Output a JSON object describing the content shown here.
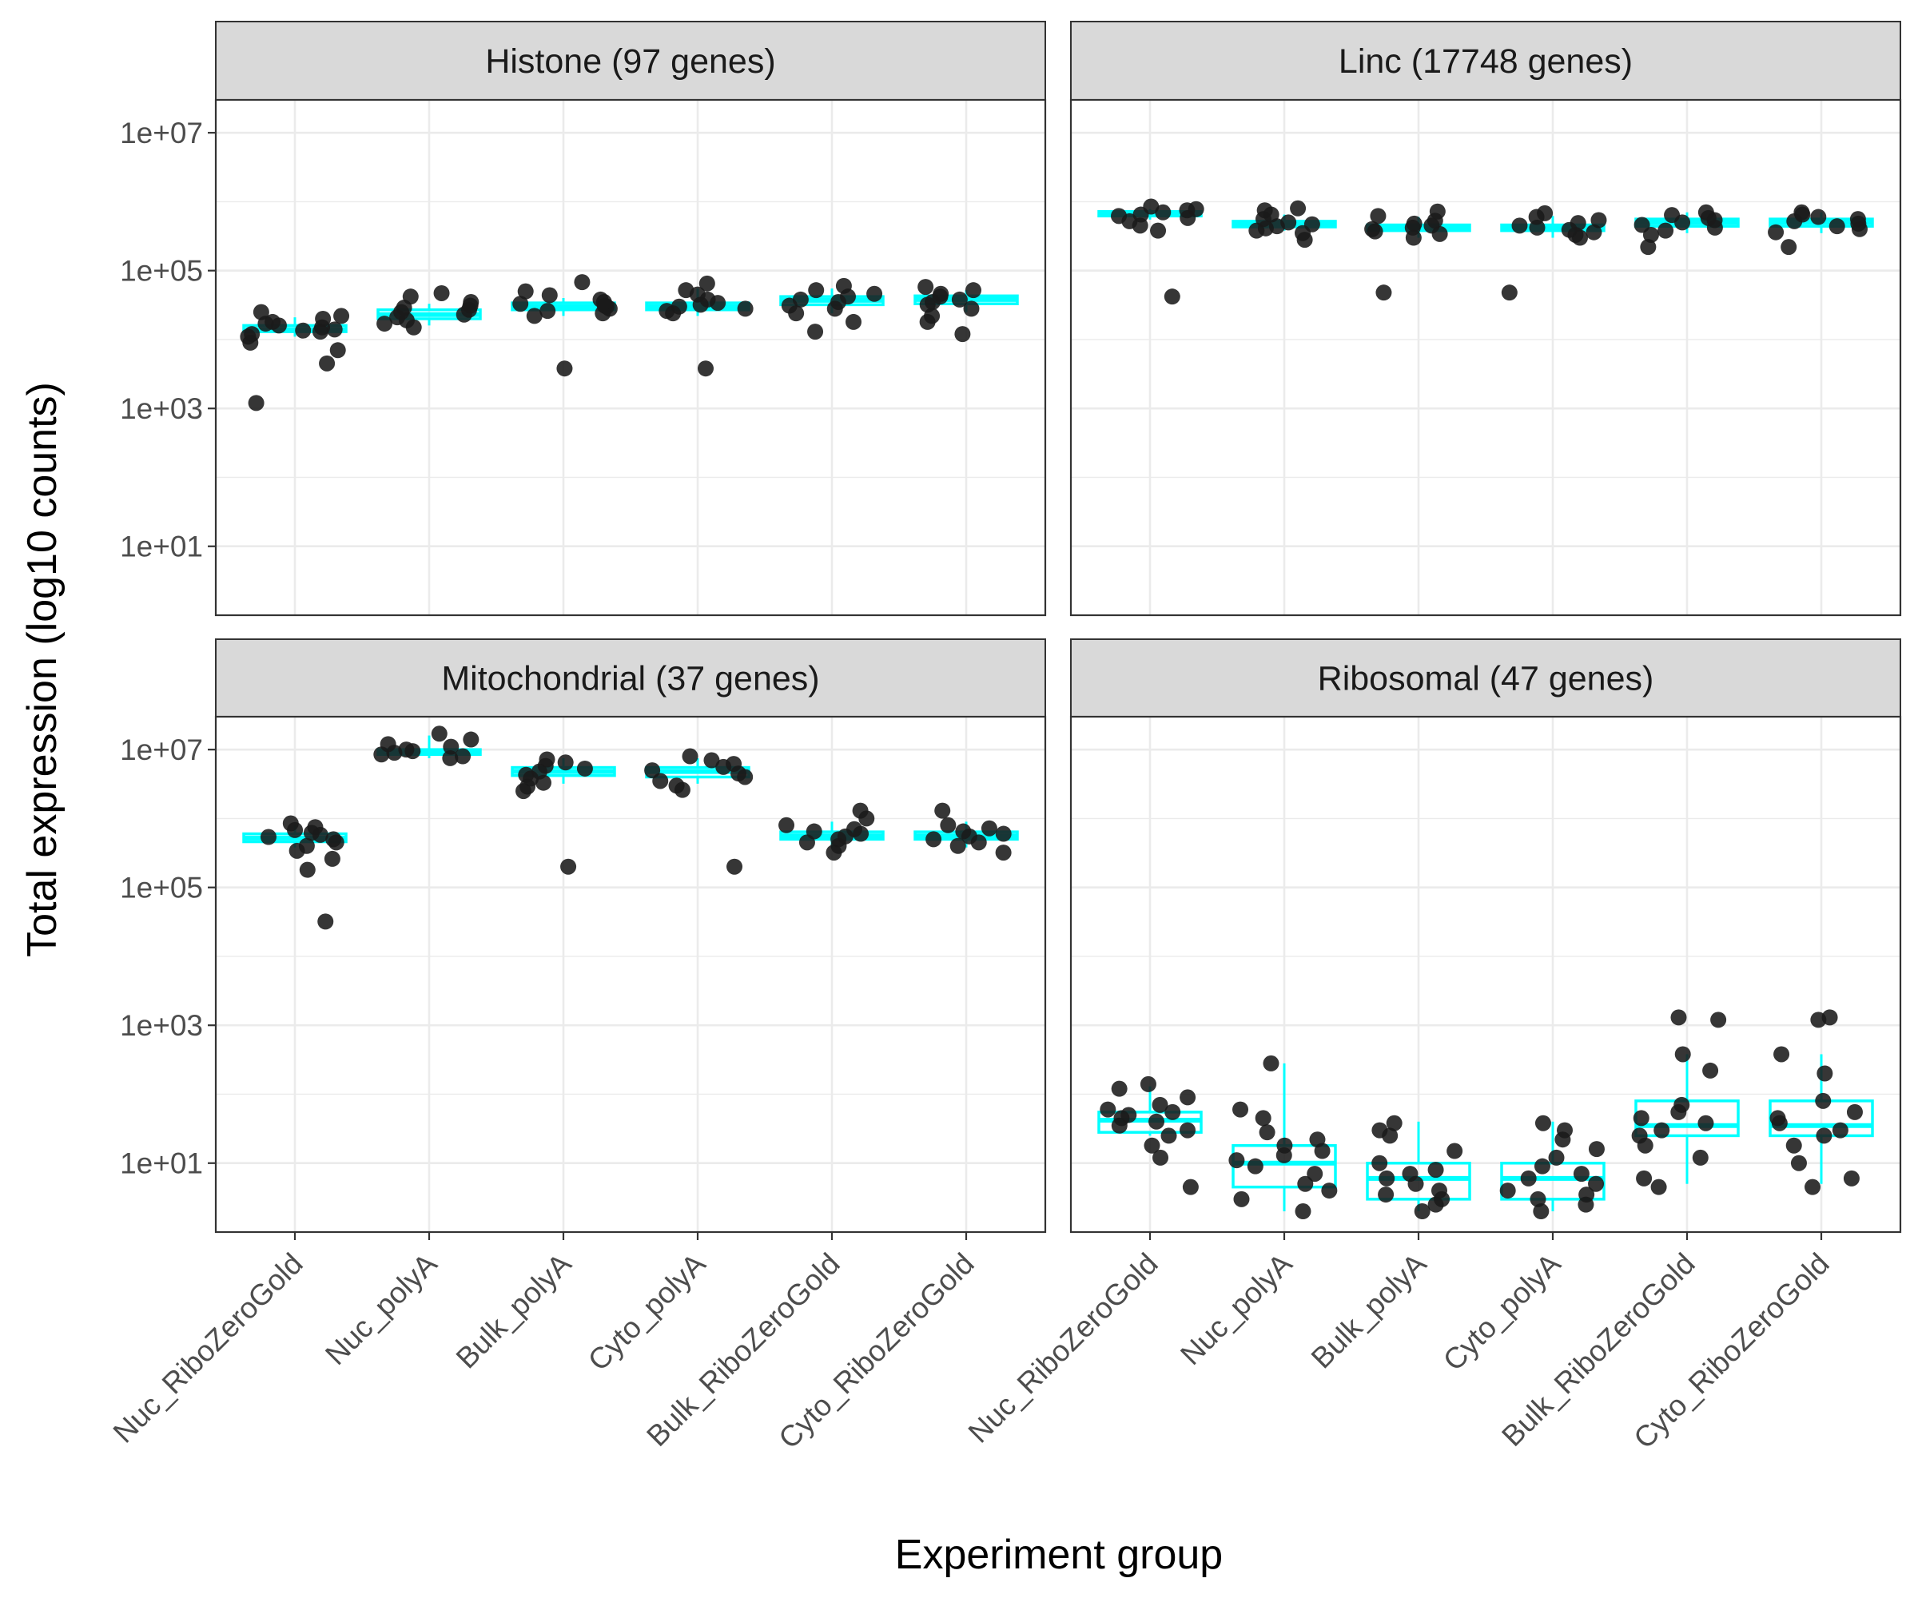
{
  "chart_data": {
    "type": "box+jitter",
    "xlabel": "Experiment group",
    "ylabel": "Total expression (log10 counts)",
    "yscale": "log10",
    "ylim": [
      1,
      30000000
    ],
    "yticks": [
      "1e+01",
      "1e+03",
      "1e+05",
      "1e+07"
    ],
    "ytick_values": [
      10,
      1000,
      100000,
      10000000
    ],
    "grid": true,
    "categories": [
      "Nuc_RiboZeroGold",
      "Nuc_polyA",
      "Bulk_polyA",
      "Cyto_polyA",
      "Bulk_RiboZeroGold",
      "Cyto_RiboZeroGold"
    ],
    "colors": {
      "box": "#00FFFF",
      "point": "#1a1a1a",
      "strip": "#d9d9d9",
      "grid": "#ebebeb",
      "panel_border": "#333333"
    },
    "panels": [
      {
        "title": "Histone (97 genes)",
        "groups": [
          {
            "box": [
              11000,
              13000,
              14000,
              16000,
              21000
            ],
            "points": [
              1200,
              4500,
              7000,
              9000,
              11000,
              12000,
              13000,
              13500,
              14000,
              15000,
              16000,
              17000,
              18000,
              20000,
              22000,
              25000
            ]
          },
          {
            "box": [
              16000,
              20000,
              23000,
              27000,
              33000
            ],
            "points": [
              15000,
              17000,
              19000,
              21000,
              23000,
              25000,
              27000,
              29000,
              31000,
              35000,
              42000,
              47000
            ]
          },
          {
            "box": [
              22000,
              27000,
              30000,
              34000,
              40000
            ],
            "points": [
              3800,
              22000,
              24000,
              26000,
              28000,
              30000,
              31000,
              33000,
              35000,
              38000,
              44000,
              50000,
              68000
            ]
          },
          {
            "box": [
              22000,
              27000,
              30000,
              34000,
              55000
            ],
            "points": [
              3800,
              24000,
              26000,
              28000,
              30000,
              32000,
              34000,
              38000,
              45000,
              52000,
              65000
            ]
          },
          {
            "box": [
              24000,
              32000,
              37000,
              42000,
              55000
            ],
            "points": [
              13000,
              18000,
              24000,
              28000,
              31000,
              35000,
              38000,
              42000,
              46000,
              52000,
              60000
            ]
          },
          {
            "box": [
              25000,
              33000,
              38000,
              43000,
              52000
            ],
            "points": [
              12000,
              18000,
              22000,
              28000,
              32000,
              35000,
              38000,
              42000,
              46000,
              52000,
              58000
            ]
          }
        ]
      },
      {
        "title": "Linc (17748 genes)",
        "groups": [
          {
            "box": [
              550000,
              620000,
              650000,
              720000,
              780000
            ],
            "points": [
              42000,
              380000,
              450000,
              520000,
              580000,
              620000,
              650000,
              700000,
              750000,
              780000,
              850000
            ]
          },
          {
            "box": [
              380000,
              430000,
              470000,
              520000,
              650000
            ],
            "points": [
              280000,
              350000,
              380000,
              410000,
              440000,
              470000,
              500000,
              560000,
              650000,
              750000,
              800000
            ]
          },
          {
            "box": [
              300000,
              380000,
              420000,
              460000,
              600000
            ],
            "points": [
              48000,
              300000,
              340000,
              370000,
              400000,
              420000,
              450000,
              480000,
              530000,
              620000,
              720000
            ]
          },
          {
            "box": [
              300000,
              380000,
              420000,
              460000,
              620000
            ],
            "points": [
              48000,
              300000,
              330000,
              360000,
              390000,
              420000,
              450000,
              490000,
              540000,
              600000,
              680000
            ]
          },
          {
            "box": [
              350000,
              440000,
              500000,
              560000,
              700000
            ],
            "points": [
              220000,
              330000,
              380000,
              420000,
              460000,
              500000,
              540000,
              580000,
              640000,
              700000
            ]
          },
          {
            "box": [
              350000,
              440000,
              500000,
              560000,
              700000
            ],
            "points": [
              220000,
              360000,
              400000,
              440000,
              480000,
              520000,
              560000,
              600000,
              650000,
              700000
            ]
          }
        ]
      },
      {
        "title": "Mitochondrial (37 genes)",
        "groups": [
          {
            "box": [
              380000,
              460000,
              520000,
              600000,
              800000
            ],
            "points": [
              32000,
              180000,
              260000,
              340000,
              400000,
              450000,
              500000,
              540000,
              580000,
              620000,
              680000,
              750000,
              850000
            ]
          },
          {
            "box": [
              7500000,
              8500000,
              9000000,
              10000000,
              16000000
            ],
            "points": [
              7500000,
              8000000,
              8500000,
              9000000,
              9500000,
              10000000,
              11000000,
              12000000,
              14000000,
              17000000
            ]
          },
          {
            "box": [
              3200000,
              4200000,
              4800000,
              5500000,
              7500000
            ],
            "points": [
              200000,
              2500000,
              2900000,
              3300000,
              3800000,
              4300000,
              4800000,
              5300000,
              5800000,
              6500000,
              7200000
            ]
          },
          {
            "box": [
              3200000,
              4000000,
              4800000,
              5500000,
              7500000
            ],
            "points": [
              200000,
              2600000,
              3000000,
              3500000,
              4000000,
              4500000,
              5000000,
              5600000,
              6200000,
              7000000,
              8000000
            ]
          },
          {
            "box": [
              380000,
              500000,
              560000,
              640000,
              900000
            ],
            "points": [
              320000,
              400000,
              450000,
              500000,
              550000,
              600000,
              650000,
              700000,
              800000,
              1000000,
              1300000
            ]
          },
          {
            "box": [
              380000,
              500000,
              560000,
              640000,
              900000
            ],
            "points": [
              320000,
              400000,
              450000,
              500000,
              550000,
              600000,
              650000,
              720000,
              800000,
              1300000
            ]
          }
        ]
      },
      {
        "title": "Ribosomal (47 genes)",
        "groups": [
          {
            "box": [
              25,
              28,
              42,
              55,
              130
            ],
            "points": [
              4.5,
              12,
              18,
              25,
              30,
              35,
              40,
              45,
              50,
              55,
              60,
              70,
              90,
              120,
              140
            ]
          },
          {
            "box": [
              2,
              4.5,
              10,
              18,
              280
            ],
            "points": [
              2,
              3,
              4,
              5,
              7,
              9,
              11,
              13,
              15,
              18,
              22,
              28,
              45,
              60,
              280
            ]
          },
          {
            "box": [
              2,
              3,
              6,
              10,
              40
            ],
            "points": [
              2,
              2.5,
              3,
              3.5,
              4,
              5,
              6,
              7,
              8,
              10,
              15,
              25,
              30,
              38
            ]
          },
          {
            "box": [
              2,
              3,
              6,
              10,
              40
            ],
            "points": [
              2,
              2.5,
              3,
              3.5,
              4,
              5,
              6,
              7,
              9,
              12,
              16,
              22,
              30,
              38
            ]
          },
          {
            "box": [
              5,
              25,
              35,
              80,
              380
            ],
            "points": [
              4.5,
              6,
              12,
              18,
              25,
              30,
              38,
              45,
              55,
              70,
              220,
              380,
              1200,
              1300
            ]
          },
          {
            "box": [
              5,
              25,
              35,
              80,
              380
            ],
            "points": [
              4.5,
              6,
              10,
              18,
              25,
              30,
              38,
              45,
              55,
              80,
              200,
              380,
              1200,
              1300
            ]
          }
        ]
      }
    ]
  }
}
